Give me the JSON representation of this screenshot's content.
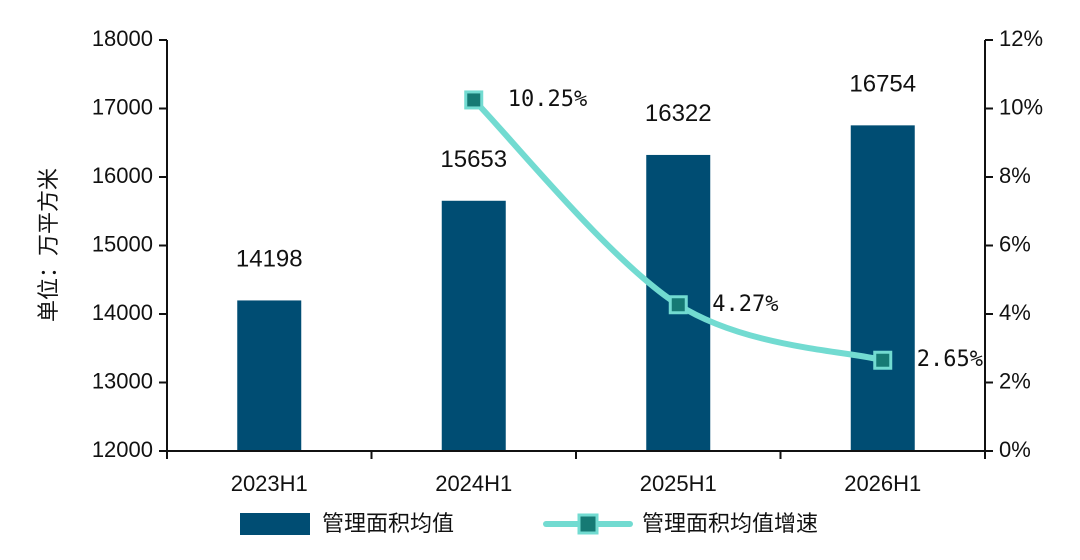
{
  "chart_data": {
    "type": "bar",
    "categories": [
      "2023H1",
      "2024H1",
      "2025H1",
      "2026H1"
    ],
    "series": [
      {
        "name": "管理面积均值",
        "type": "bar",
        "axis": "left",
        "values": [
          14198,
          15653,
          16322,
          16754
        ],
        "labels": [
          "14198",
          "15653",
          "16322",
          "16754"
        ],
        "color": "#004d73"
      },
      {
        "name": "管理面积均值增速",
        "type": "line",
        "axis": "right",
        "values": [
          null,
          10.25,
          4.27,
          2.65
        ],
        "labels": [
          "",
          "10.25%",
          "4.27%",
          "2.65%"
        ],
        "color": "#72dbd1",
        "marker_color": "#167a74"
      }
    ],
    "ylabel": "单位：万平方米",
    "ylim": [
      12000,
      18000
    ],
    "yticks": [
      "12000",
      "13000",
      "14000",
      "15000",
      "16000",
      "17000",
      "18000"
    ],
    "y2lim": [
      0,
      12
    ],
    "y2ticks": [
      "0%",
      "2%",
      "4%",
      "6%",
      "8%",
      "10%",
      "12%"
    ],
    "legend_position": "bottom",
    "grid": false
  }
}
